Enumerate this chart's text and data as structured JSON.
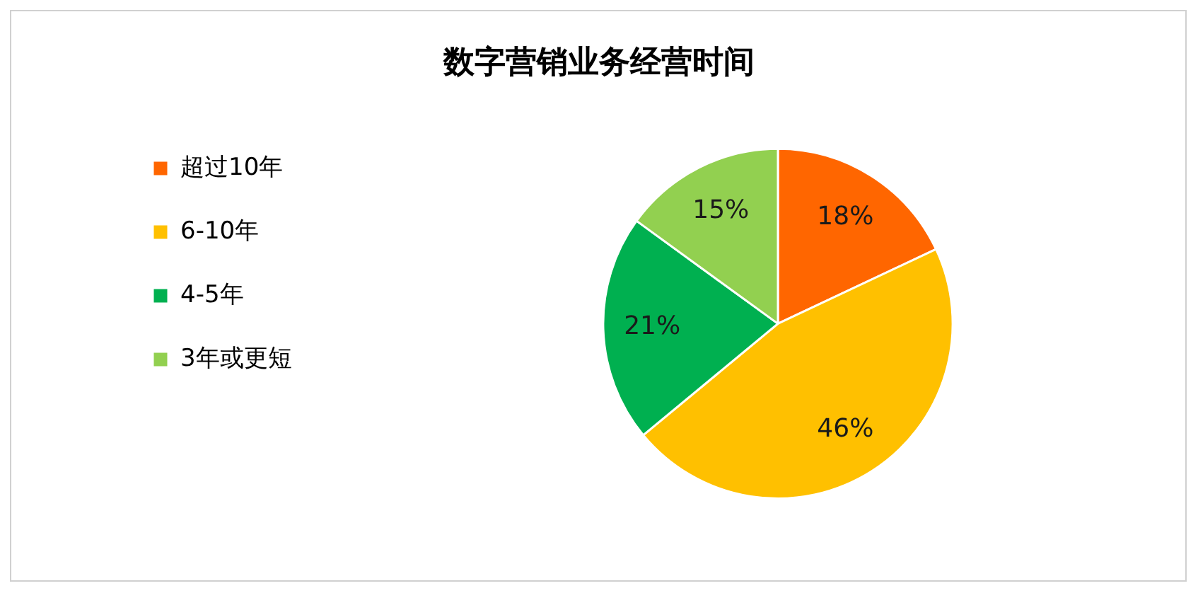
{
  "chart_data": {
    "type": "pie",
    "title": "数字营销业务经营时间",
    "categories": [
      "超过10年",
      "6-10年",
      "4-5年",
      "3年或更短"
    ],
    "values": [
      18,
      46,
      21,
      15
    ],
    "colors": [
      "#ff6600",
      "#ffc000",
      "#00b050",
      "#92d050"
    ],
    "value_labels": [
      "18%",
      "46%",
      "21%",
      "15%"
    ],
    "legend": "left"
  }
}
